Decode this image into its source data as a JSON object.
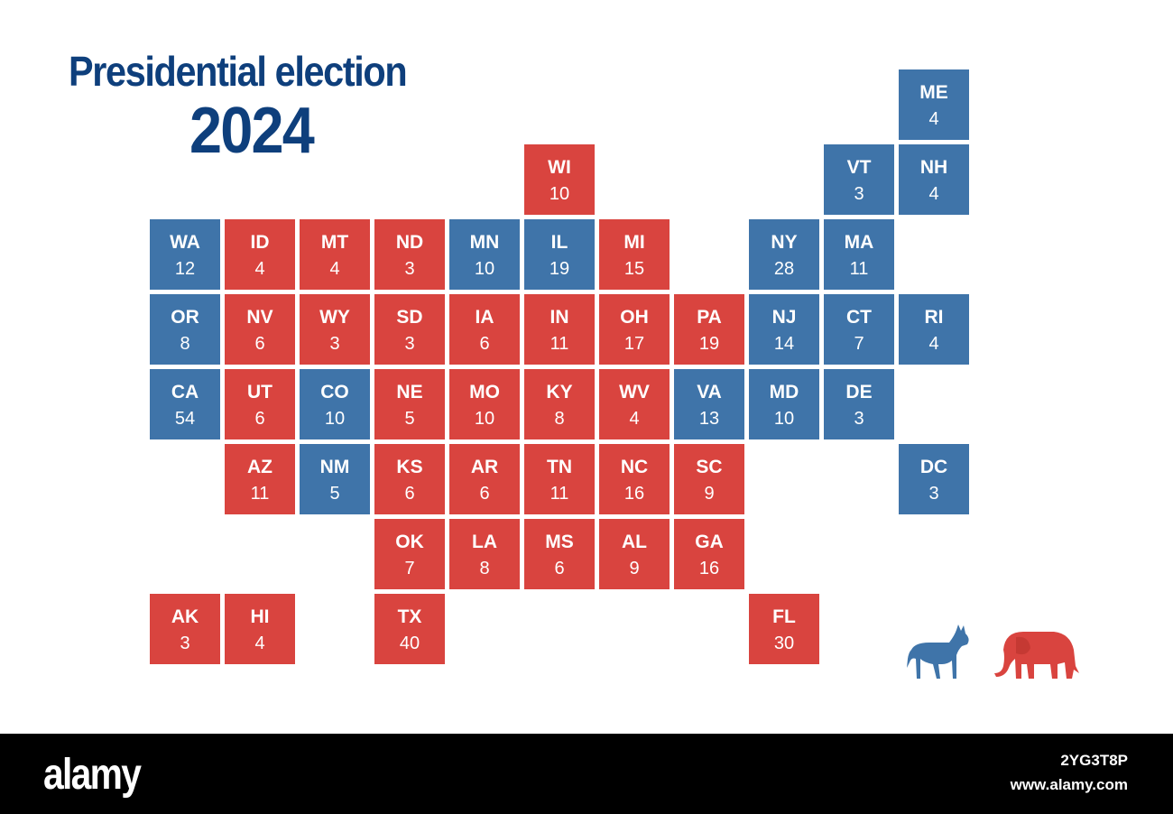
{
  "title": {
    "line1": "Presidential election",
    "line2": "2024"
  },
  "colors": {
    "dem": "#3f74a9",
    "rep": "#d9443f",
    "title": "#0e3f7c"
  },
  "states": [
    {
      "abbr": "ME",
      "votes": "4",
      "party": "dem",
      "col": 10,
      "row": 0
    },
    {
      "abbr": "WI",
      "votes": "10",
      "party": "rep",
      "col": 5,
      "row": 1
    },
    {
      "abbr": "VT",
      "votes": "3",
      "party": "dem",
      "col": 9,
      "row": 1
    },
    {
      "abbr": "NH",
      "votes": "4",
      "party": "dem",
      "col": 10,
      "row": 1
    },
    {
      "abbr": "WA",
      "votes": "12",
      "party": "dem",
      "col": 0,
      "row": 2
    },
    {
      "abbr": "ID",
      "votes": "4",
      "party": "rep",
      "col": 1,
      "row": 2
    },
    {
      "abbr": "MT",
      "votes": "4",
      "party": "rep",
      "col": 2,
      "row": 2
    },
    {
      "abbr": "ND",
      "votes": "3",
      "party": "rep",
      "col": 3,
      "row": 2
    },
    {
      "abbr": "MN",
      "votes": "10",
      "party": "dem",
      "col": 4,
      "row": 2
    },
    {
      "abbr": "IL",
      "votes": "19",
      "party": "dem",
      "col": 5,
      "row": 2
    },
    {
      "abbr": "MI",
      "votes": "15",
      "party": "rep",
      "col": 6,
      "row": 2
    },
    {
      "abbr": "NY",
      "votes": "28",
      "party": "dem",
      "col": 8,
      "row": 2
    },
    {
      "abbr": "MA",
      "votes": "11",
      "party": "dem",
      "col": 9,
      "row": 2
    },
    {
      "abbr": "OR",
      "votes": "8",
      "party": "dem",
      "col": 0,
      "row": 3
    },
    {
      "abbr": "NV",
      "votes": "6",
      "party": "rep",
      "col": 1,
      "row": 3
    },
    {
      "abbr": "WY",
      "votes": "3",
      "party": "rep",
      "col": 2,
      "row": 3
    },
    {
      "abbr": "SD",
      "votes": "3",
      "party": "rep",
      "col": 3,
      "row": 3
    },
    {
      "abbr": "IA",
      "votes": "6",
      "party": "rep",
      "col": 4,
      "row": 3
    },
    {
      "abbr": "IN",
      "votes": "11",
      "party": "rep",
      "col": 5,
      "row": 3
    },
    {
      "abbr": "OH",
      "votes": "17",
      "party": "rep",
      "col": 6,
      "row": 3
    },
    {
      "abbr": "PA",
      "votes": "19",
      "party": "rep",
      "col": 7,
      "row": 3
    },
    {
      "abbr": "NJ",
      "votes": "14",
      "party": "dem",
      "col": 8,
      "row": 3
    },
    {
      "abbr": "CT",
      "votes": "7",
      "party": "dem",
      "col": 9,
      "row": 3
    },
    {
      "abbr": "RI",
      "votes": "4",
      "party": "dem",
      "col": 10,
      "row": 3
    },
    {
      "abbr": "CA",
      "votes": "54",
      "party": "dem",
      "col": 0,
      "row": 4
    },
    {
      "abbr": "UT",
      "votes": "6",
      "party": "rep",
      "col": 1,
      "row": 4
    },
    {
      "abbr": "CO",
      "votes": "10",
      "party": "dem",
      "col": 2,
      "row": 4
    },
    {
      "abbr": "NE",
      "votes": "5",
      "party": "rep",
      "col": 3,
      "row": 4
    },
    {
      "abbr": "MO",
      "votes": "10",
      "party": "rep",
      "col": 4,
      "row": 4
    },
    {
      "abbr": "KY",
      "votes": "8",
      "party": "rep",
      "col": 5,
      "row": 4
    },
    {
      "abbr": "WV",
      "votes": "4",
      "party": "rep",
      "col": 6,
      "row": 4
    },
    {
      "abbr": "VA",
      "votes": "13",
      "party": "dem",
      "col": 7,
      "row": 4
    },
    {
      "abbr": "MD",
      "votes": "10",
      "party": "dem",
      "col": 8,
      "row": 4
    },
    {
      "abbr": "DE",
      "votes": "3",
      "party": "dem",
      "col": 9,
      "row": 4
    },
    {
      "abbr": "AZ",
      "votes": "11",
      "party": "rep",
      "col": 1,
      "row": 5
    },
    {
      "abbr": "NM",
      "votes": "5",
      "party": "dem",
      "col": 2,
      "row": 5
    },
    {
      "abbr": "KS",
      "votes": "6",
      "party": "rep",
      "col": 3,
      "row": 5
    },
    {
      "abbr": "AR",
      "votes": "6",
      "party": "rep",
      "col": 4,
      "row": 5
    },
    {
      "abbr": "TN",
      "votes": "11",
      "party": "rep",
      "col": 5,
      "row": 5
    },
    {
      "abbr": "NC",
      "votes": "16",
      "party": "rep",
      "col": 6,
      "row": 5
    },
    {
      "abbr": "SC",
      "votes": "9",
      "party": "rep",
      "col": 7,
      "row": 5
    },
    {
      "abbr": "DC",
      "votes": "3",
      "party": "dem",
      "col": 10,
      "row": 5
    },
    {
      "abbr": "OK",
      "votes": "7",
      "party": "rep",
      "col": 3,
      "row": 6
    },
    {
      "abbr": "LA",
      "votes": "8",
      "party": "rep",
      "col": 4,
      "row": 6
    },
    {
      "abbr": "MS",
      "votes": "6",
      "party": "rep",
      "col": 5,
      "row": 6
    },
    {
      "abbr": "AL",
      "votes": "9",
      "party": "rep",
      "col": 6,
      "row": 6
    },
    {
      "abbr": "GA",
      "votes": "16",
      "party": "rep",
      "col": 7,
      "row": 6
    },
    {
      "abbr": "AK",
      "votes": "3",
      "party": "rep",
      "col": 0,
      "row": 7
    },
    {
      "abbr": "HI",
      "votes": "4",
      "party": "rep",
      "col": 1,
      "row": 7
    },
    {
      "abbr": "TX",
      "votes": "40",
      "party": "rep",
      "col": 3,
      "row": 7
    },
    {
      "abbr": "FL",
      "votes": "30",
      "party": "rep",
      "col": 8,
      "row": 7
    }
  ],
  "icons": {
    "dem": "donkey-icon",
    "rep": "elephant-icon"
  },
  "footer": {
    "brand": "alamy",
    "image_id": "2YG3T8P",
    "url": "www.alamy.com"
  }
}
